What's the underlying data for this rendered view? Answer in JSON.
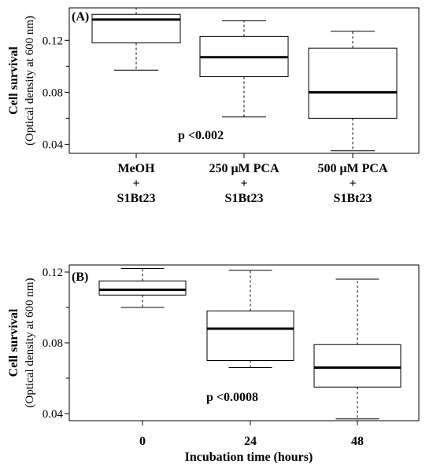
{
  "chart_data": [
    {
      "type": "box",
      "panel_label": "(A)",
      "ylabel_line1": "Cell survival",
      "ylabel_line2": "(Optical density at 600 nm)",
      "xlabel": "",
      "ylim": [
        0.033,
        0.145
      ],
      "yticks": [
        0.04,
        0.08,
        0.12
      ],
      "ytick_labels": [
        "0.04",
        "0.08",
        "0.12"
      ],
      "annotation": "p <0.002",
      "categories": [
        [
          "MeOH",
          "+",
          "S1Bt23"
        ],
        [
          "250 μM PCA",
          "+",
          "S1Bt23"
        ],
        [
          "500 μM PCA",
          "+",
          "S1Bt23"
        ]
      ],
      "boxes": [
        {
          "min": 0.097,
          "q1": 0.118,
          "median": 0.136,
          "q3": 0.14,
          "max": 0.145
        },
        {
          "min": 0.061,
          "q1": 0.092,
          "median": 0.107,
          "q3": 0.123,
          "max": 0.135
        },
        {
          "min": 0.035,
          "q1": 0.06,
          "median": 0.08,
          "q3": 0.114,
          "max": 0.127
        }
      ]
    },
    {
      "type": "box",
      "panel_label": "(B)",
      "ylabel_line1": "Cell survival",
      "ylabel_line2": "(Optical density at 600 nm)",
      "xlabel": "Incubation time (hours)",
      "ylim": [
        0.036,
        0.124
      ],
      "yticks": [
        0.04,
        0.08,
        0.12
      ],
      "ytick_labels": [
        "0.04",
        "0.08",
        "0.12"
      ],
      "annotation": "p <0.0008",
      "categories": [
        [
          "0"
        ],
        [
          "24"
        ],
        [
          "48"
        ]
      ],
      "boxes": [
        {
          "min": 0.1,
          "q1": 0.107,
          "median": 0.11,
          "q3": 0.115,
          "max": 0.122
        },
        {
          "min": 0.066,
          "q1": 0.07,
          "median": 0.088,
          "q3": 0.098,
          "max": 0.121
        },
        {
          "min": 0.037,
          "q1": 0.055,
          "median": 0.066,
          "q3": 0.079,
          "max": 0.116
        }
      ]
    }
  ]
}
